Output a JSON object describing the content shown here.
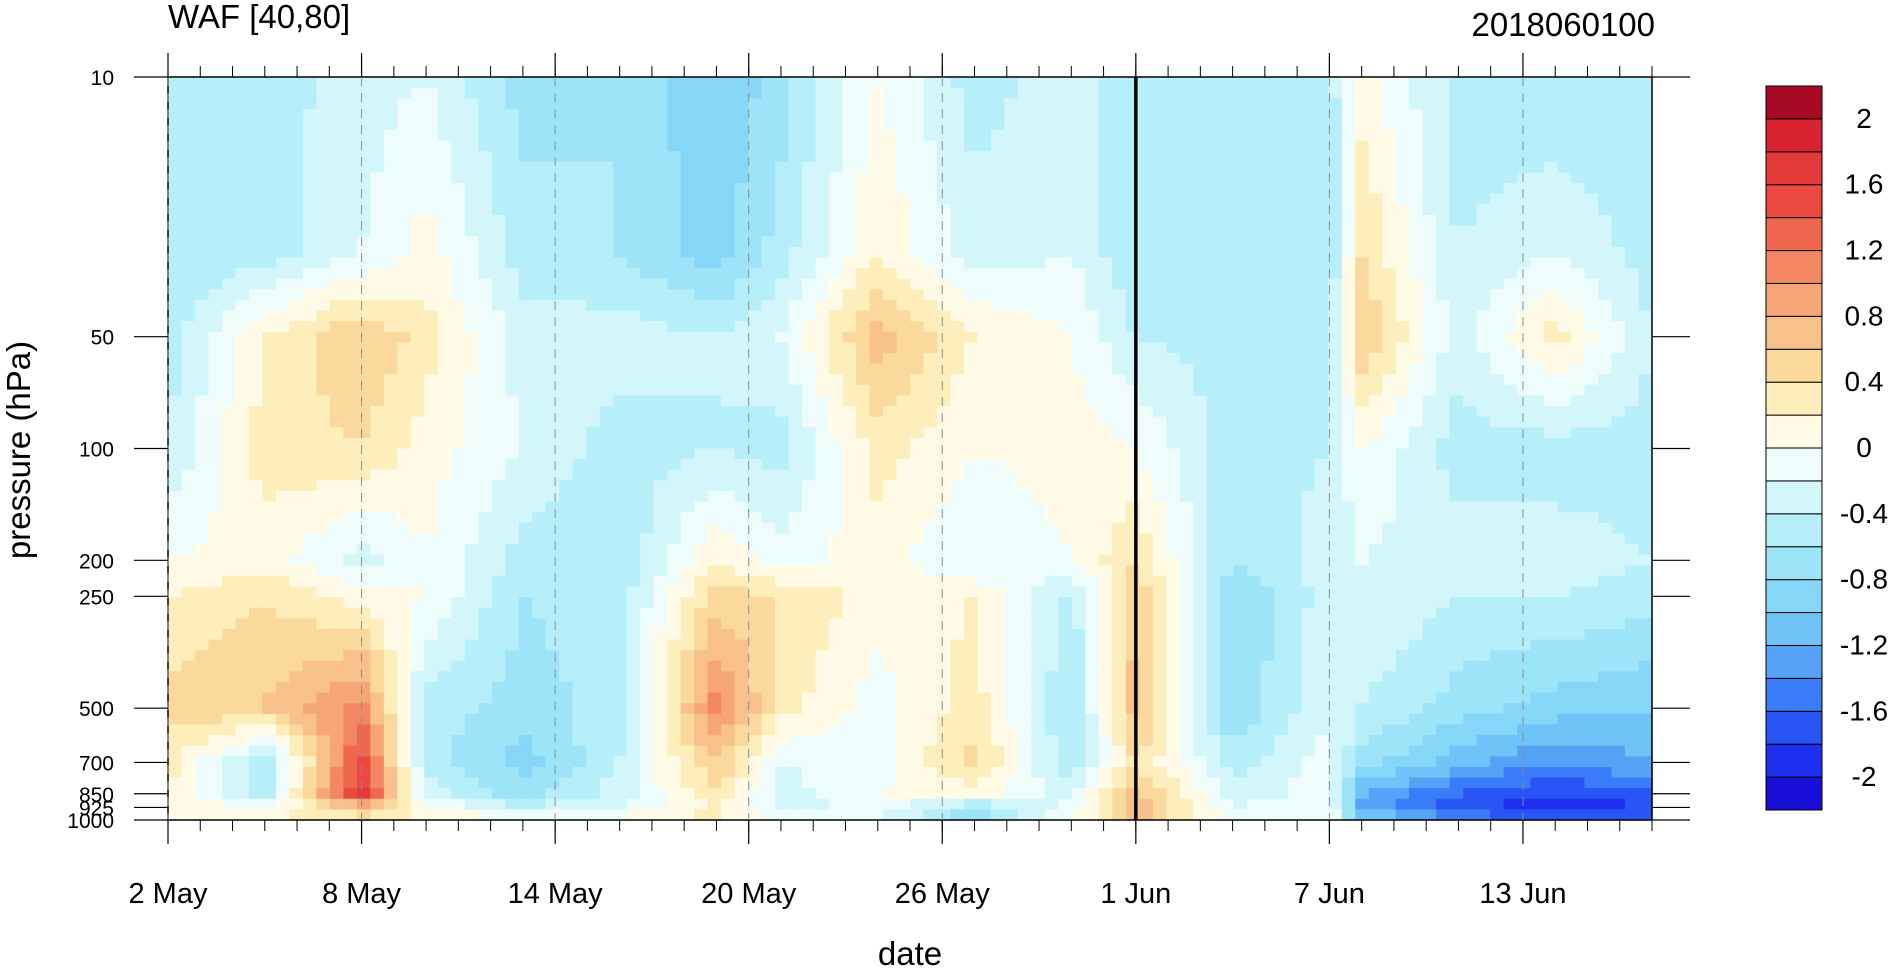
{
  "chart_data": {
    "type": "heatmap",
    "title": "WAF [40,80]",
    "run_label": "2018060100",
    "xlabel": "date",
    "ylabel": "pressure (hPa)",
    "x_range": [
      "2018-05-02",
      "2018-06-17"
    ],
    "x_ticks": [
      {
        "date": "2018-05-02",
        "label": "2 May"
      },
      {
        "date": "2018-05-08",
        "label": "8 May"
      },
      {
        "date": "2018-05-14",
        "label": "14 May"
      },
      {
        "date": "2018-05-20",
        "label": "20 May"
      },
      {
        "date": "2018-05-26",
        "label": "26 May"
      },
      {
        "date": "2018-06-01",
        "label": "1 Jun"
      },
      {
        "date": "2018-06-07",
        "label": "7 Jun"
      },
      {
        "date": "2018-06-13",
        "label": "13 Jun"
      }
    ],
    "y_scale": "log",
    "y_range": [
      1000,
      10
    ],
    "y_ticks": [
      {
        "value": 10,
        "label": "10"
      },
      {
        "value": 50,
        "label": "50"
      },
      {
        "value": 100,
        "label": "100"
      },
      {
        "value": 200,
        "label": "200"
      },
      {
        "value": 250,
        "label": "250"
      },
      {
        "value": 500,
        "label": "500"
      },
      {
        "value": 700,
        "label": "700"
      },
      {
        "value": 850,
        "label": "850"
      },
      {
        "value": 925,
        "label": "925"
      },
      {
        "value": 1000,
        "label": "1000"
      }
    ],
    "vertical_marker_date": "2018-06-01",
    "colorbar": {
      "levels": [
        -2.2,
        -2.0,
        -1.8,
        -1.6,
        -1.4,
        -1.2,
        -1.0,
        -0.8,
        -0.6,
        -0.4,
        -0.2,
        0,
        0.2,
        0.4,
        0.6,
        0.8,
        1.0,
        1.2,
        1.4,
        1.6,
        1.8,
        2.0,
        2.2
      ],
      "colors": [
        "#1a0fd8",
        "#1f2ff0",
        "#2a55f5",
        "#3a7cf7",
        "#55a2f7",
        "#6fc3f6",
        "#86d6f7",
        "#9ee4f8",
        "#b6eef9",
        "#d3f6fa",
        "#eefcfb",
        "#fffbe6",
        "#fdeebc",
        "#fbd89c",
        "#f8c08a",
        "#f6a577",
        "#f38663",
        "#f0674f",
        "#ec4a40",
        "#e43a3a",
        "#d92332",
        "#a80a25"
      ],
      "labels": [
        {
          "value": 2.0,
          "label": "2"
        },
        {
          "value": 1.6,
          "label": "1.6"
        },
        {
          "value": 1.2,
          "label": "1.2"
        },
        {
          "value": 0.8,
          "label": "0.8"
        },
        {
          "value": 0.4,
          "label": "0.4"
        },
        {
          "value": 0.0,
          "label": "0"
        },
        {
          "value": -0.4,
          "label": "-0.4"
        },
        {
          "value": -0.8,
          "label": "-0.8"
        },
        {
          "value": -1.2,
          "label": "-1.2"
        },
        {
          "value": -1.6,
          "label": "-1.6"
        },
        {
          "value": -2.0,
          "label": "-2"
        }
      ]
    },
    "grid": {
      "dates": [
        "2018-05-02",
        "2018-05-05",
        "2018-05-08",
        "2018-05-10",
        "2018-05-13",
        "2018-05-16",
        "2018-05-19",
        "2018-05-21",
        "2018-05-24",
        "2018-05-27",
        "2018-05-30",
        "2018-06-01",
        "2018-06-04",
        "2018-06-07",
        "2018-06-08",
        "2018-06-11",
        "2018-06-14",
        "2018-06-17"
      ],
      "pressures": [
        10,
        30,
        50,
        100,
        200,
        250,
        500,
        700,
        850,
        925,
        1000
      ],
      "values": [
        [
          -0.4,
          -0.5,
          -0.3,
          -0.2,
          -0.7,
          -0.6,
          -1.0,
          -0.7,
          0.0,
          -0.5,
          -0.3,
          -0.6,
          -0.4,
          -0.5,
          0.1,
          -0.5,
          -0.6,
          -0.5
        ],
        [
          -0.6,
          -0.5,
          -0.2,
          0.1,
          -0.5,
          -0.6,
          -0.9,
          -0.5,
          0.2,
          -0.3,
          -0.2,
          -0.6,
          -0.4,
          -0.6,
          0.4,
          -0.4,
          -0.2,
          -0.5
        ],
        [
          -0.5,
          0.2,
          0.6,
          0.3,
          -0.3,
          -0.3,
          -0.4,
          -0.2,
          0.7,
          0.2,
          0.0,
          -0.4,
          -0.5,
          -0.5,
          0.6,
          -0.3,
          0.3,
          -0.4
        ],
        [
          -0.4,
          0.3,
          0.4,
          0.1,
          -0.2,
          -0.5,
          -0.4,
          -0.5,
          0.3,
          0.0,
          0.1,
          0.0,
          -0.5,
          -0.4,
          0.0,
          -0.5,
          -0.5,
          -0.5
        ],
        [
          0.0,
          0.1,
          -0.3,
          0.0,
          -0.5,
          -0.6,
          0.2,
          -0.1,
          0.1,
          -0.2,
          0.0,
          0.4,
          -0.6,
          -0.3,
          -0.2,
          -0.3,
          -0.3,
          -0.4
        ],
        [
          0.2,
          0.4,
          0.1,
          0.0,
          -0.6,
          -0.5,
          0.5,
          0.4,
          0.1,
          0.2,
          -0.5,
          0.6,
          -0.8,
          -0.3,
          -0.2,
          -0.4,
          -0.4,
          -0.5
        ],
        [
          0.5,
          0.6,
          1.1,
          -0.5,
          -0.7,
          -0.5,
          1.1,
          0.3,
          -0.1,
          0.3,
          -0.6,
          0.7,
          -0.8,
          -0.2,
          -0.4,
          -0.7,
          -0.9,
          -1.0
        ],
        [
          0.3,
          -0.6,
          1.5,
          -0.5,
          -0.9,
          -0.4,
          0.6,
          -0.2,
          -0.1,
          0.5,
          -0.6,
          0.4,
          -0.5,
          -0.1,
          -0.7,
          -1.1,
          -1.4,
          -1.2
        ],
        [
          0.2,
          -0.5,
          1.7,
          -0.3,
          -0.7,
          -0.3,
          0.4,
          -0.3,
          0.0,
          0.1,
          -0.3,
          0.7,
          -0.3,
          -0.1,
          -1.2,
          -1.6,
          -1.8,
          -1.6
        ],
        [
          0.1,
          0.0,
          0.6,
          0.1,
          -0.4,
          -0.2,
          0.2,
          -0.3,
          -0.1,
          -0.6,
          -0.1,
          0.8,
          -0.2,
          0.0,
          -1.3,
          -1.7,
          -2.0,
          -1.8
        ],
        [
          0.0,
          0.2,
          0.3,
          0.2,
          0.0,
          0.1,
          0.3,
          0.0,
          -0.2,
          -0.8,
          0.0,
          0.6,
          0.0,
          0.0,
          -0.9,
          -1.4,
          -1.6,
          -1.5
        ]
      ]
    }
  }
}
